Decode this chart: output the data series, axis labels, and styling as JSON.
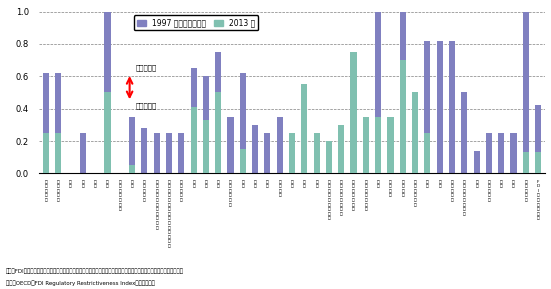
{
  "values_1997": [
    0.62,
    0.62,
    0.0,
    0.25,
    0.0,
    1.0,
    0.0,
    0.35,
    0.28,
    0.25,
    0.25,
    0.25,
    0.65,
    0.6,
    0.75,
    0.35,
    0.62,
    0.3,
    0.25,
    0.35,
    0.0,
    0.55,
    0.25,
    0.0,
    0.0,
    0.25,
    0.35,
    1.0,
    0.0,
    1.0,
    0.0,
    0.82,
    0.82,
    0.82,
    0.5,
    0.14,
    0.25,
    0.25,
    0.25,
    1.0,
    0.42
  ],
  "values_2013": [
    0.25,
    0.25,
    0.0,
    0.0,
    0.0,
    0.5,
    0.0,
    0.05,
    0.0,
    0.0,
    0.0,
    0.0,
    0.41,
    0.33,
    0.5,
    0.0,
    0.15,
    0.0,
    0.0,
    0.0,
    0.25,
    0.55,
    0.25,
    0.2,
    0.3,
    0.75,
    0.35,
    0.35,
    0.35,
    0.7,
    0.5,
    0.25,
    0.0,
    0.0,
    0.0,
    0.0,
    0.0,
    0.0,
    0.0,
    0.13,
    0.13
  ],
  "color_bar1": "#8080c0",
  "color_bar2": "#80c0b0",
  "legend_label1": "1997 年からの減少幅",
  "legend_label2": "2013 年",
  "annotation_upper": "対外制限的",
  "annotation_lower": "対外開放的",
  "footnote1": "備考：FDI制限指標は、０は対外的に完全に開放されていること、１は対外的に完全に閉鎖されていることを意味する。",
  "footnote2": "資料：OECD『FDI Regulatory Restrictiveness Index』から作成。",
  "ylim": [
    0,
    1.0
  ],
  "yticks": [
    0,
    0.2,
    0.4,
    0.6,
    0.8,
    1.0
  ]
}
